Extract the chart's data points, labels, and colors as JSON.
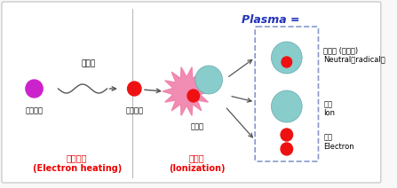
{
  "bg_color": "#f8f8f8",
  "border_color": "#cccccc",
  "title_plasma": "Plasma =",
  "title_plasma_color": "#2233bb",
  "label_jeongi": "전기장",
  "label_jeon_low": "저온전자",
  "label_jeon_high": "고온전자",
  "label_jungsong": "중성종",
  "label_electron_heating_1": "전자가열",
  "label_electron_heating_2": "(Electron heating)",
  "label_ionization_1": "이온화",
  "label_ionization_2": "(Ionization)",
  "label_neutral_1": "중성종 (활성종)",
  "label_neutral_2": "Neutral（radical）",
  "label_ion_1": "이온",
  "label_ion_2": "Ion",
  "label_electron_1": "전자",
  "label_electron_2": "Electron",
  "red_color": "#ee1111",
  "purple_color": "#cc22cc",
  "teal_color": "#88cccc",
  "teal_border": "#66aaaa",
  "pink_splash_color": "#f080aa",
  "pink_splash_light": "#faaabb",
  "arrow_color": "#555555",
  "red_label_color": "#ee0000",
  "dashed_box_color": "#8899cc",
  "divider_color": "#bbbbbb"
}
